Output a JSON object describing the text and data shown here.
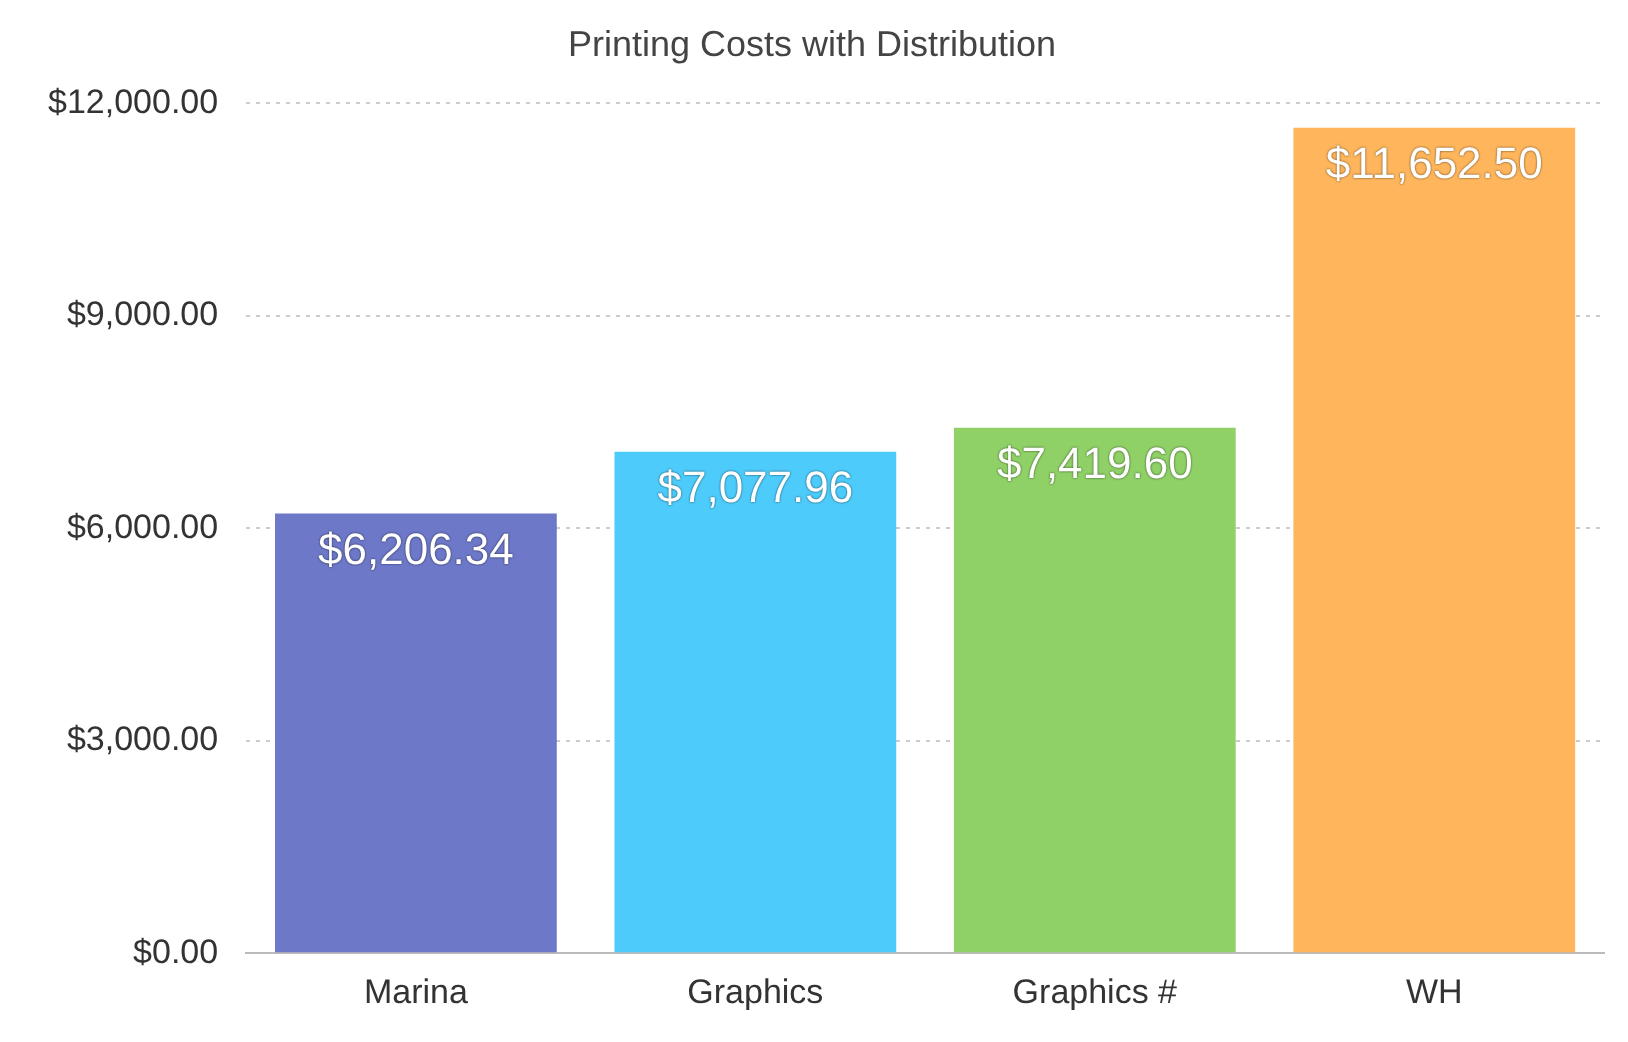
{
  "chart_data": {
    "type": "bar",
    "title": "Printing Costs with Distribution",
    "categories": [
      "Marina",
      "Graphics",
      "Graphics #",
      "WH"
    ],
    "values": [
      6206.34,
      7077.96,
      7419.6,
      11652.5
    ],
    "colors": [
      "#6d78c8",
      "#4dcbfb",
      "#8fd067",
      "#ffb55b"
    ],
    "value_labels": [
      "$6,206.34",
      "$7,077.96",
      "$7,419.60",
      "$11,652.50"
    ],
    "ylim": [
      0,
      12000
    ],
    "yticks": [
      {
        "value": 0,
        "label": "$0.00"
      },
      {
        "value": 3000,
        "label": "$3,000.00"
      },
      {
        "value": 6000,
        "label": "$6,000.00"
      },
      {
        "value": 9000,
        "label": "$9,000.00"
      },
      {
        "value": 12000,
        "label": "$12,000.00"
      }
    ],
    "grid": "y",
    "legend": false
  }
}
